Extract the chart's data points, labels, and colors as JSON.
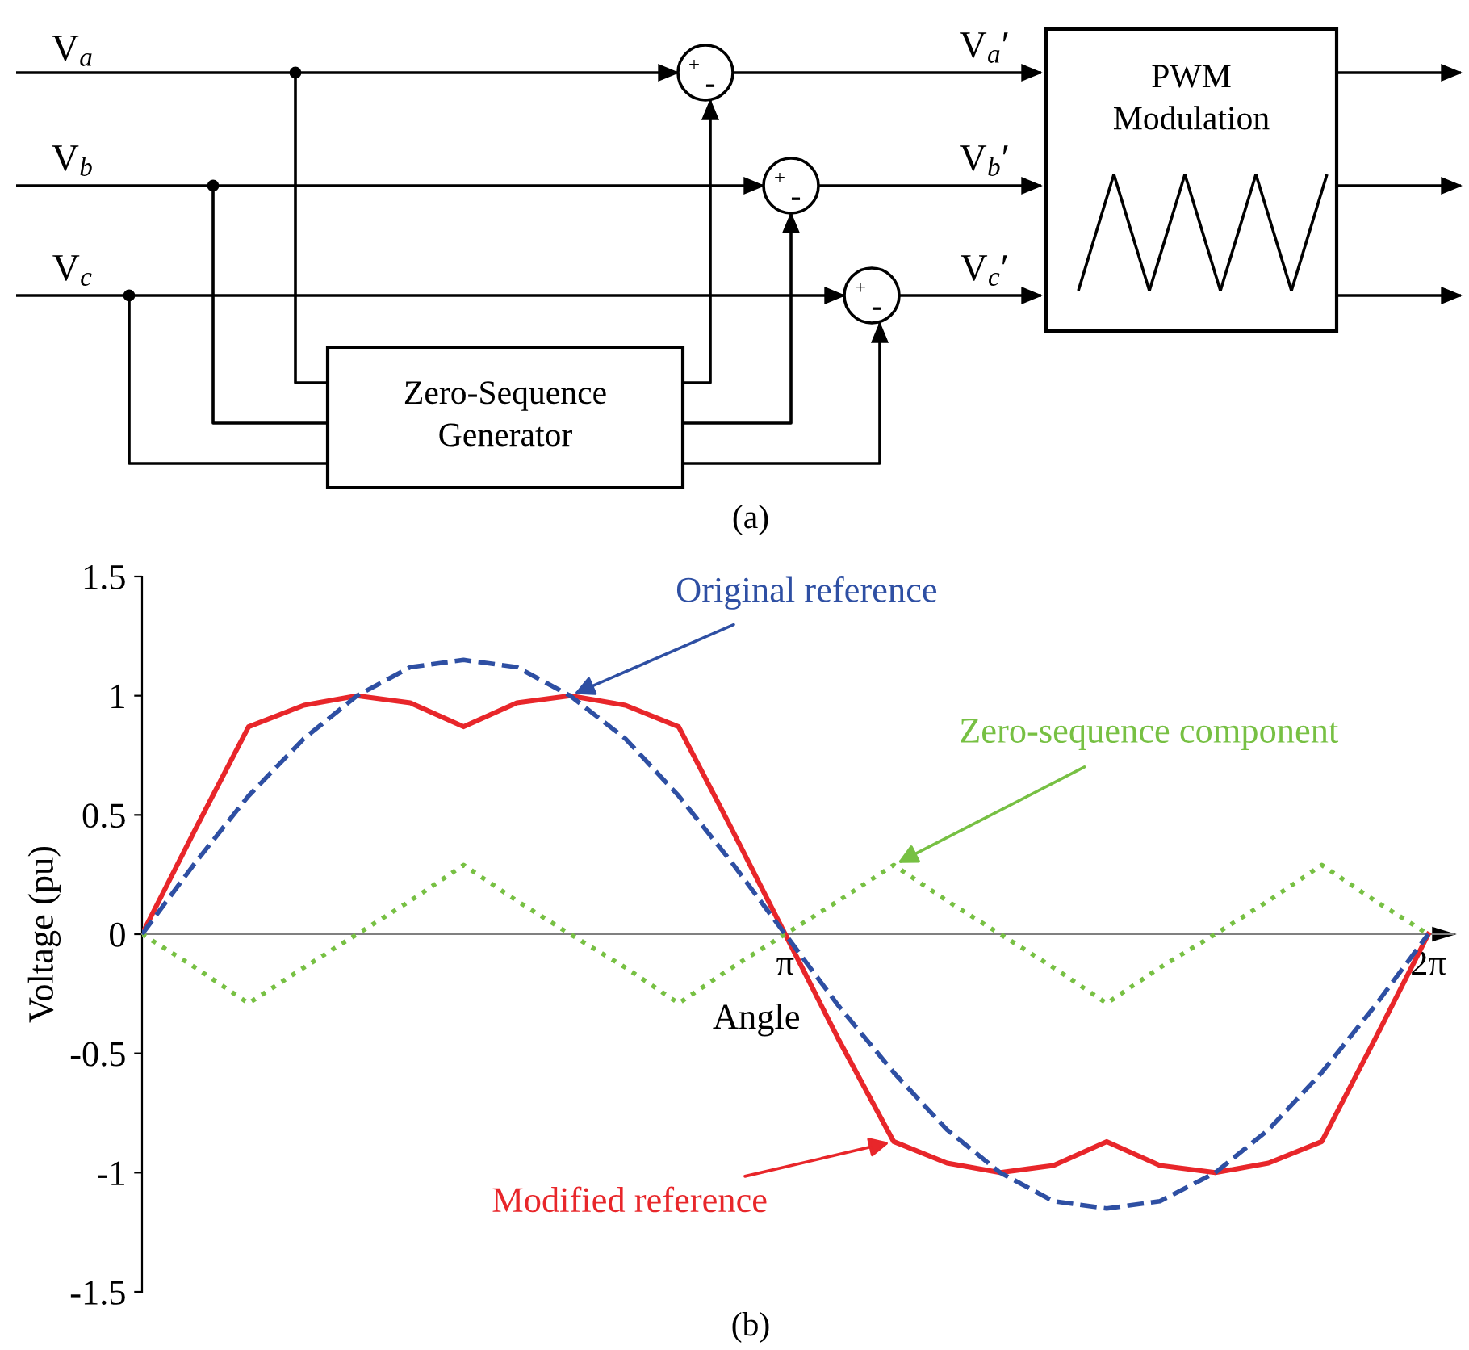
{
  "chart_data": {
    "type": "line",
    "xlabel": "Angle",
    "ylabel": "Voltage (pu)",
    "x": [
      0,
      0.26,
      0.52,
      0.79,
      1.05,
      1.31,
      1.57,
      1.83,
      2.09,
      2.36,
      2.62,
      2.88,
      3.14,
      3.4,
      3.67,
      3.93,
      4.19,
      4.45,
      4.71,
      4.97,
      5.24,
      5.5,
      5.76,
      6.02,
      6.28
    ],
    "series": [
      {
        "name": "Original reference",
        "color": "#2e4fa3",
        "line_style": "dashed",
        "values": [
          0,
          0.3,
          0.58,
          0.82,
          1.0,
          1.12,
          1.15,
          1.12,
          1.0,
          0.82,
          0.58,
          0.3,
          0,
          -0.3,
          -0.58,
          -0.82,
          -1.0,
          -1.12,
          -1.15,
          -1.12,
          -1.0,
          -0.82,
          -0.58,
          -0.3,
          0
        ]
      },
      {
        "name": "Zero-sequence component",
        "color": "#77c043",
        "line_style": "dotted",
        "values": [
          0,
          -0.14,
          -0.29,
          -0.14,
          0,
          0.14,
          0.29,
          0.14,
          0,
          -0.14,
          -0.29,
          -0.14,
          0,
          0.14,
          0.29,
          0.14,
          0,
          -0.14,
          -0.29,
          -0.14,
          0,
          0.14,
          0.29,
          0.14,
          0
        ]
      },
      {
        "name": "Modified reference",
        "color": "#e8262a",
        "line_style": "solid",
        "values": [
          0,
          0.44,
          0.87,
          0.96,
          1.0,
          0.97,
          0.87,
          0.97,
          1.0,
          0.96,
          0.87,
          0.44,
          0,
          -0.44,
          -0.87,
          -0.96,
          -1.0,
          -0.97,
          -0.87,
          -0.97,
          -1.0,
          -0.96,
          -0.87,
          -0.44,
          0
        ]
      }
    ],
    "xlim": [
      0,
      6.4
    ],
    "xticks": [
      {
        "value": 3.14,
        "label": "π"
      },
      {
        "value": 6.28,
        "label": "2π"
      }
    ],
    "ylim": [
      -1.5,
      1.5
    ],
    "yticks": [
      -1.5,
      -1,
      -0.5,
      0,
      0.5,
      1,
      1.5
    ],
    "grid": false,
    "legend": false,
    "marker": "none",
    "annotations": [
      "(a)",
      "V$_{a}$",
      "V$_{b}$",
      "V$_{c}$",
      "V$_{a}$′",
      "V$_{b}$′",
      "V$_{c}$′",
      "PWM\nModulation",
      "Zero-Sequence\nGenerator",
      "+",
      "-",
      "(b)"
    ]
  }
}
